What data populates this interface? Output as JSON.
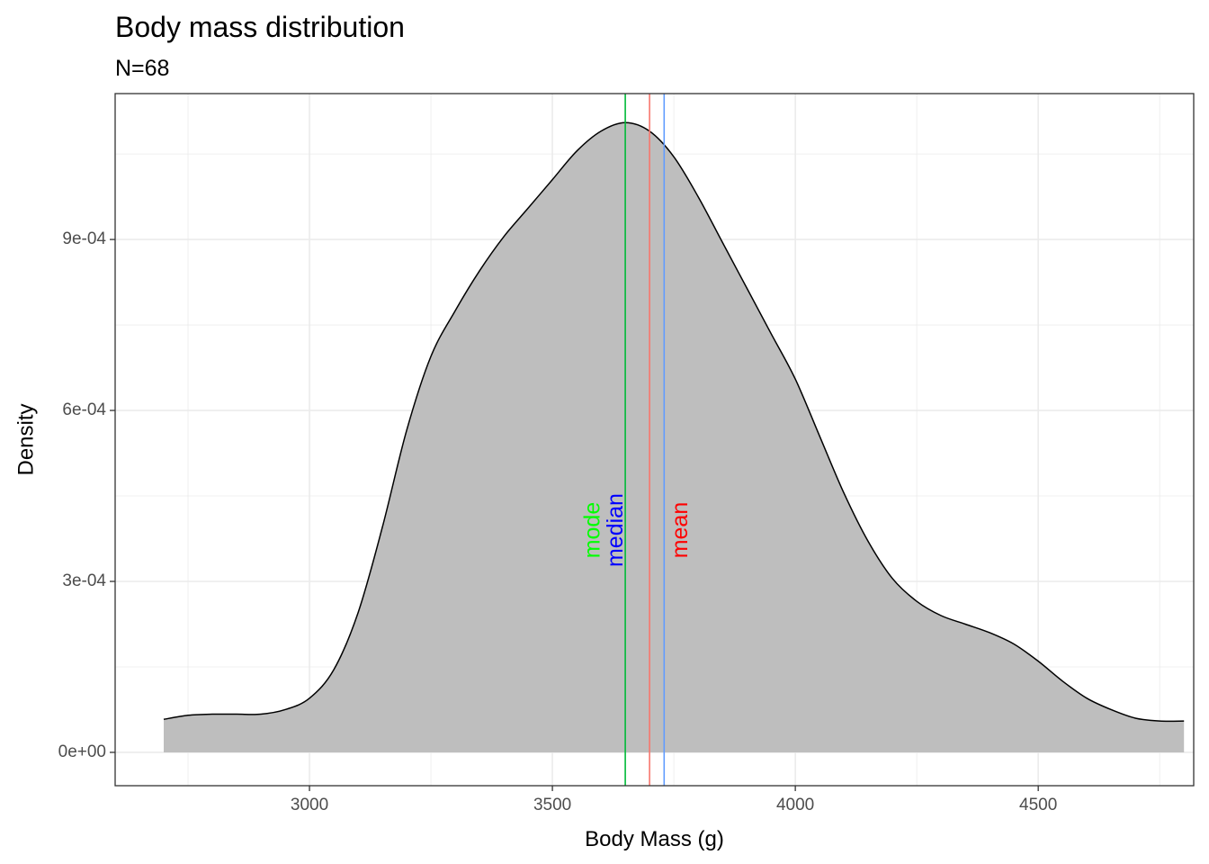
{
  "chart_data": {
    "type": "area",
    "title": "Body mass distribution",
    "subtitle": "N=68",
    "xlabel": "Body Mass (g)",
    "ylabel": "Density",
    "xlim": [
      2600,
      4820
    ],
    "ylim": [
      -5.85e-05,
      0.001156
    ],
    "x_ticks": [
      3000,
      3500,
      4000,
      4500
    ],
    "x_minor_ticks": [
      2750,
      3250,
      3750,
      4250,
      4750
    ],
    "y_ticks": [
      0,
      0.0003,
      0.0006,
      0.0009
    ],
    "y_tick_labels": [
      "0e+00",
      "3e-04",
      "6e-04",
      "9e-04"
    ],
    "y_minor_ticks": [
      0.00015,
      0.00045,
      0.00075,
      0.00105
    ],
    "grid": true,
    "fill_color": "#bebebe",
    "line_color": "#000000",
    "density": {
      "x": [
        2700,
        2750,
        2800,
        2850,
        2900,
        2950,
        3000,
        3050,
        3100,
        3150,
        3200,
        3250,
        3300,
        3350,
        3400,
        3450,
        3500,
        3550,
        3600,
        3650,
        3700,
        3750,
        3800,
        3850,
        3900,
        3950,
        4000,
        4050,
        4100,
        4150,
        4200,
        4250,
        4300,
        4350,
        4400,
        4450,
        4500,
        4550,
        4600,
        4650,
        4700,
        4750,
        4800
      ],
      "y": [
        5.8e-05,
        6.5e-05,
        6.7e-05,
        6.7e-05,
        6.7e-05,
        7.5e-05,
        9.5e-05,
        0.000145,
        0.000245,
        0.000395,
        0.000565,
        0.000695,
        0.000775,
        0.000845,
        0.000905,
        0.000955,
        0.001005,
        0.001055,
        0.00109,
        0.001105,
        0.00109,
        0.001045,
        0.000975,
        0.000895,
        0.000815,
        0.000735,
        0.000655,
        0.000555,
        0.000455,
        0.00037,
        0.000305,
        0.000265,
        0.00024,
        0.000225,
        0.00021,
        0.00019,
        0.00016,
        0.000125,
        9.5e-05,
        7.5e-05,
        6e-05,
        5.5e-05,
        5.5e-05
      ]
    },
    "annotations": [
      {
        "label": "mode",
        "value": 3650,
        "line_color": "#00ba38",
        "text_color": "#00ff00",
        "text_x": 3585,
        "text_y": 0.00039
      },
      {
        "label": "median",
        "value": 3730,
        "line_color": "#619cff",
        "text_color": "#0000ff",
        "text_x": 3632,
        "text_y": 0.00039
      },
      {
        "label": "mean",
        "value": 3700,
        "line_color": "#f8766d",
        "text_color": "#ff0000",
        "text_x": 3765,
        "text_y": 0.00039
      }
    ]
  }
}
